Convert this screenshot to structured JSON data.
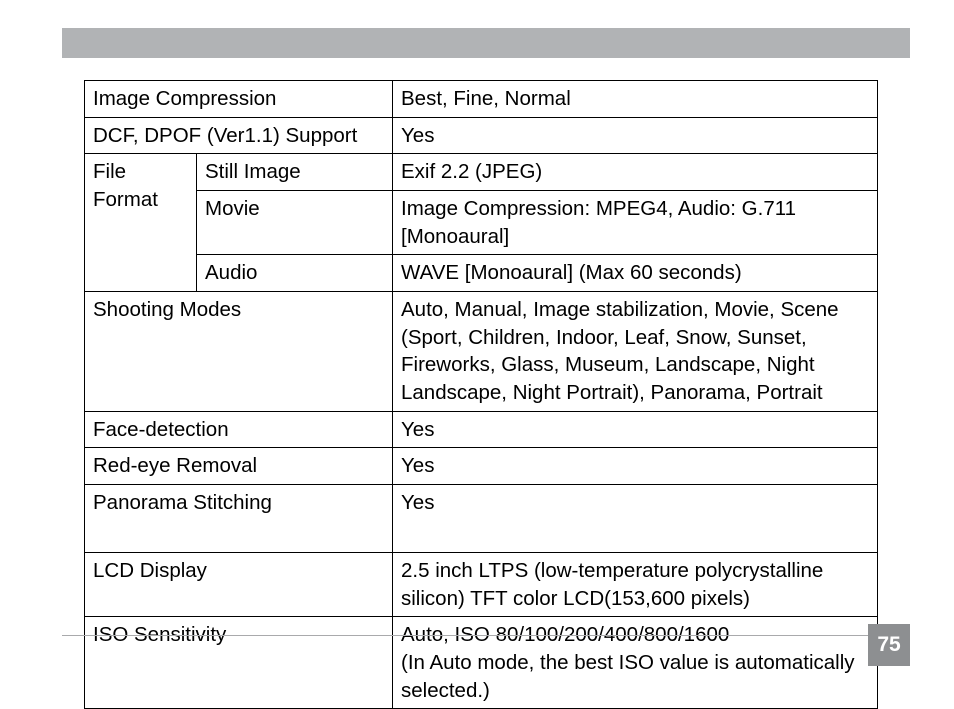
{
  "pageNumber": "75",
  "colors": {
    "topBar": "#b1b3b5",
    "footerLine": "#a9aaac",
    "pageNumBg": "#8d8f91",
    "pageNumText": "#ffffff",
    "tableBorder": "#000000",
    "text": "#000000",
    "background": "#ffffff"
  },
  "typography": {
    "bodyFontSizePt": 15,
    "pageNumFontSizePt": 16,
    "fontFamily": "Segoe UI / Myriad Pro / Arial (sans-serif)"
  },
  "layout": {
    "imageWidthPx": 954,
    "imageHeightPx": 694,
    "tableLeftPx": 84,
    "tableTopPx": 80,
    "tableWidthPx": 794,
    "col1WidthPx": 112,
    "col2WidthPx": 196,
    "col3WidthPx": 486
  },
  "table": {
    "type": "table",
    "rows": [
      {
        "label": "Image Compression",
        "value": "Best, Fine, Normal"
      },
      {
        "label": "DCF, DPOF (Ver1.1) Support",
        "value": "Yes"
      },
      {
        "groupLabel": "File Format",
        "subLabel": "Still Image",
        "value": "Exif 2.2 (JPEG)"
      },
      {
        "subLabel": "Movie",
        "value": "Image Compression: MPEG4, Audio: G.711 [Monoaural]"
      },
      {
        "subLabel": "Audio",
        "value": "WAVE [Monoaural] (Max 60 seconds)"
      },
      {
        "label": "Shooting Modes",
        "value": "Auto, Manual, Image stabilization, Movie, Scene (Sport, Children, Indoor, Leaf, Snow, Sunset, Fireworks, Glass, Museum, Landscape, Night Landscape, Night Portrait), Panorama, Portrait"
      },
      {
        "label": "Face-detection",
        "value": "Yes"
      },
      {
        "label": "Red-eye Removal",
        "value": "Yes"
      },
      {
        "label": "Panorama Stitching",
        "value": "Yes",
        "tall": true
      },
      {
        "label": "LCD Display",
        "value": "2.5 inch LTPS (low-temperature polycrystalline silicon) TFT color LCD(153,600 pixels)"
      },
      {
        "label": "ISO Sensitivity",
        "value": "Auto, ISO 80/100/200/400/800/1600\n(In Auto mode, the best ISO value is automatically selected.)"
      }
    ]
  }
}
